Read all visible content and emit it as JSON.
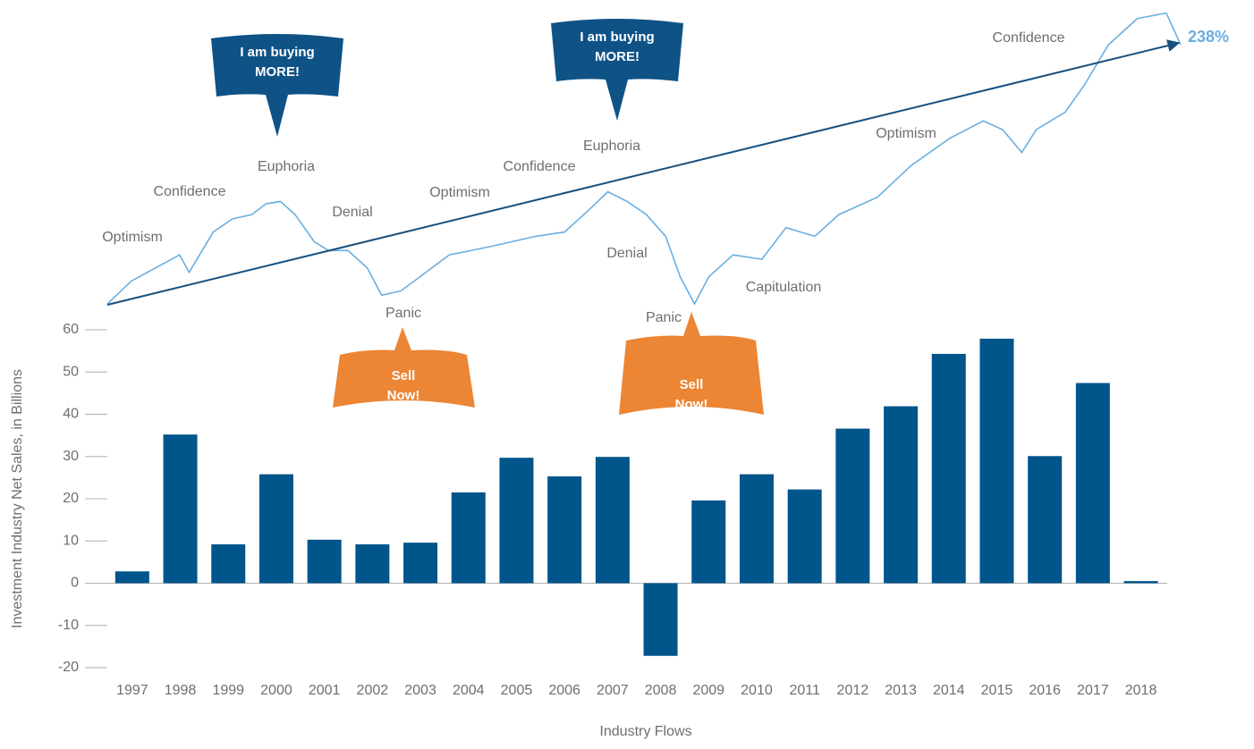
{
  "chart_data": [
    {
      "type": "bar",
      "x_label": "Industry Flows",
      "y_label": "Investment Industry Net Sales, in Billions",
      "categories": [
        "1997",
        "1998",
        "1999",
        "2000",
        "2001",
        "2002",
        "2003",
        "2004",
        "2005",
        "2006",
        "2007",
        "2008",
        "2009",
        "2010",
        "2011",
        "2012",
        "2013",
        "2014",
        "2015",
        "2016",
        "2017",
        "2018"
      ],
      "values": [
        2.8,
        35.2,
        9.2,
        25.8,
        10.3,
        9.2,
        9.6,
        21.5,
        29.7,
        25.3,
        29.9,
        -17.2,
        19.6,
        25.8,
        22.2,
        36.6,
        41.9,
        54.3,
        57.9,
        30.1,
        47.4,
        0.5
      ],
      "color": "#00558a",
      "ylim": [
        -20,
        60
      ],
      "yticks": [
        -20,
        -10,
        0,
        10,
        20,
        30,
        40,
        50,
        60
      ]
    },
    {
      "type": "line",
      "color": "#6aaee0",
      "trend_color": "#16507f",
      "x": [
        1996.5,
        1997.0,
        1998.0,
        1998.2,
        1998.7,
        1999.1,
        1999.5,
        1999.8,
        2000.1,
        2000.4,
        2000.8,
        2001.1,
        2001.5,
        2001.9,
        2002.2,
        2002.6,
        2003.0,
        2003.6,
        2004.5,
        2005.4,
        2006.0,
        2006.5,
        2006.9,
        2007.3,
        2007.7,
        2008.1,
        2008.4,
        2008.7,
        2009.0,
        2009.5,
        2010.1,
        2010.6,
        2011.2,
        2011.7,
        2012.5,
        2013.2,
        2014.0,
        2014.7,
        2015.1,
        2015.5,
        2015.8,
        2016.4,
        2016.8,
        2017.3,
        2017.9,
        2018.5,
        2018.8
      ],
      "values": [
        100,
        121,
        145,
        129,
        166,
        178,
        182,
        192,
        194,
        182,
        157,
        149,
        149,
        133,
        108,
        112,
        125,
        145,
        153,
        162,
        166,
        186,
        203,
        194,
        182,
        162,
        125,
        100,
        125,
        145,
        141,
        170,
        162,
        182,
        198,
        227,
        252,
        268,
        260,
        239,
        260,
        276,
        301,
        338,
        362,
        367,
        338
      ],
      "xlim": [
        1996.5,
        2018.8
      ],
      "ylim": [
        100,
        379
      ],
      "change_label": "238%",
      "phases": [
        "Optimism",
        "Confidence",
        "Euphoria",
        "Denial",
        "Panic",
        "Optimism",
        "Confidence",
        "Euphoria",
        "Denial",
        "Panic",
        "Capitulation",
        "Optimism",
        "Confidence"
      ],
      "callouts": [
        [
          "I am buying",
          "MORE!"
        ],
        [
          "Sell",
          "Now!"
        ],
        [
          "I am buying",
          "MORE!"
        ],
        [
          "Sell",
          "Now!"
        ]
      ]
    }
  ]
}
